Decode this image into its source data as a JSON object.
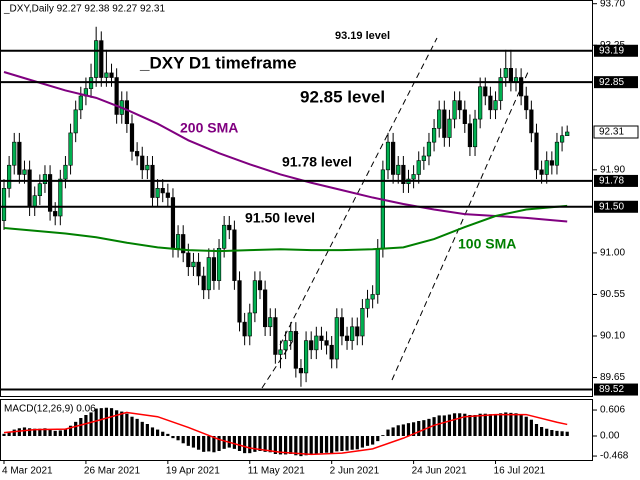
{
  "chart_data": {
    "type": "candlestick",
    "title": "_DXY,Daily  92.27 92.38 92.27 92.31",
    "annotation": "_DXY D1 timeframe",
    "categories": [
      "4 Mar 2021",
      null,
      null,
      null,
      null,
      null,
      null,
      null,
      null,
      null,
      null,
      null,
      null,
      null,
      null,
      null,
      "26 Mar 2021",
      null,
      null,
      null,
      null,
      null,
      null,
      null,
      null,
      null,
      null,
      null,
      null,
      null,
      null,
      null,
      "19 Apr 2021",
      null,
      null,
      null,
      null,
      null,
      null,
      null,
      null,
      null,
      null,
      null,
      null,
      null,
      null,
      null,
      "11 May 2021",
      null,
      null,
      null,
      null,
      null,
      null,
      null,
      null,
      null,
      null,
      null,
      null,
      null,
      null,
      null,
      "2 Jun 2021",
      null,
      null,
      null,
      null,
      null,
      null,
      null,
      null,
      null,
      null,
      null,
      null,
      null,
      null,
      null,
      "24 Jun 2021",
      null,
      null,
      null,
      null,
      null,
      null,
      null,
      null,
      null,
      null,
      null,
      null,
      null,
      null,
      null,
      "16 Jul 2021",
      null,
      null,
      null,
      null,
      null,
      null,
      null,
      null,
      null,
      null,
      null,
      null,
      null,
      null
    ],
    "open": [
      91.35,
      91.7,
      91.95,
      92.2,
      91.85,
      91.9,
      91.5,
      91.62,
      91.75,
      91.85,
      91.45,
      91.4,
      91.8,
      91.95,
      92.3,
      92.55,
      92.7,
      92.78,
      92.9,
      93.3,
      92.9,
      92.95,
      92.9,
      92.5,
      92.65,
      92.4,
      92.1,
      92.05,
      91.9,
      91.95,
      91.6,
      91.7,
      91.65,
      91.6,
      91.05,
      91.2,
      91.0,
      90.85,
      90.9,
      90.75,
      90.6,
      90.95,
      90.7,
      91.05,
      91.3,
      91.25,
      90.7,
      90.25,
      90.1,
      90.35,
      90.7,
      90.6,
      90.2,
      90.3,
      89.9,
      89.95,
      90.05,
      90.15,
      89.75,
      89.7,
      90.05,
      89.95,
      90.1,
      90.05,
      90.0,
      89.85,
      90.3,
      90.1,
      90.05,
      90.2,
      90.1,
      90.4,
      90.5,
      90.55,
      91.05,
      91.9,
      92.2,
      91.85,
      91.95,
      91.75,
      91.8,
      91.85,
      92.0,
      92.05,
      92.2,
      92.35,
      92.55,
      92.25,
      92.45,
      92.65,
      92.55,
      92.4,
      92.15,
      92.45,
      92.8,
      92.7,
      92.55,
      92.65,
      92.9,
      93.0,
      92.85,
      92.9,
      92.7,
      92.55,
      92.3,
      91.9,
      91.85,
      92.0,
      91.95,
      92.2,
      92.27
    ],
    "high": [
      91.8,
      92.05,
      92.3,
      92.3,
      92.0,
      92.0,
      91.72,
      91.85,
      91.95,
      91.95,
      91.55,
      91.9,
      92.05,
      92.4,
      92.65,
      92.8,
      92.9,
      93.05,
      93.45,
      93.4,
      93.2,
      93.05,
      93.0,
      92.75,
      92.75,
      92.5,
      92.2,
      92.15,
      92.05,
      92.05,
      91.8,
      91.8,
      91.75,
      91.7,
      91.3,
      91.3,
      91.1,
      91.0,
      91.0,
      90.85,
      91.05,
      91.05,
      91.15,
      91.4,
      91.4,
      91.35,
      90.8,
      90.35,
      90.45,
      90.8,
      90.8,
      90.7,
      90.4,
      90.4,
      90.05,
      90.15,
      90.25,
      90.25,
      89.85,
      90.15,
      90.15,
      90.2,
      90.2,
      90.15,
      90.1,
      90.4,
      90.4,
      90.2,
      90.3,
      90.3,
      90.5,
      90.6,
      90.65,
      91.15,
      92.0,
      92.3,
      92.3,
      92.05,
      92.05,
      91.9,
      91.95,
      92.1,
      92.15,
      92.3,
      92.45,
      92.65,
      92.65,
      92.55,
      92.75,
      92.75,
      92.65,
      92.5,
      92.55,
      92.9,
      92.9,
      92.8,
      92.75,
      93.0,
      93.2,
      93.2,
      93.0,
      93.0,
      92.8,
      92.65,
      92.4,
      92.0,
      92.1,
      92.1,
      92.3,
      92.37,
      92.38
    ],
    "low": [
      91.25,
      91.6,
      91.85,
      91.75,
      91.75,
      91.4,
      91.4,
      91.52,
      91.65,
      91.35,
      91.3,
      91.3,
      91.7,
      91.85,
      92.2,
      92.45,
      92.6,
      92.68,
      92.8,
      92.8,
      92.8,
      92.8,
      92.4,
      92.4,
      92.3,
      92.0,
      91.95,
      91.8,
      91.8,
      91.5,
      91.5,
      91.55,
      91.5,
      90.95,
      90.95,
      90.9,
      90.75,
      90.75,
      90.65,
      90.5,
      90.5,
      90.6,
      90.6,
      90.95,
      91.15,
      90.6,
      90.15,
      90.0,
      90.0,
      90.25,
      90.5,
      90.1,
      90.1,
      89.8,
      89.75,
      89.85,
      89.95,
      89.65,
      89.55,
      89.6,
      89.85,
      89.85,
      89.95,
      89.9,
      89.75,
      89.75,
      90.0,
      89.95,
      89.95,
      90.0,
      90.0,
      90.3,
      90.4,
      90.45,
      90.95,
      91.8,
      91.75,
      91.75,
      91.65,
      91.65,
      91.7,
      91.75,
      91.9,
      91.95,
      92.1,
      92.25,
      92.15,
      92.15,
      92.35,
      92.45,
      92.3,
      92.05,
      92.05,
      92.35,
      92.6,
      92.45,
      92.45,
      92.55,
      92.8,
      92.75,
      92.75,
      92.6,
      92.45,
      92.2,
      91.8,
      91.75,
      91.75,
      91.85,
      91.85,
      92.1,
      92.27
    ],
    "close": [
      91.7,
      91.95,
      92.2,
      91.85,
      91.9,
      91.5,
      91.62,
      91.75,
      91.85,
      91.45,
      91.4,
      91.8,
      91.95,
      92.3,
      92.55,
      92.7,
      92.78,
      92.9,
      93.3,
      92.9,
      92.95,
      92.9,
      92.5,
      92.65,
      92.4,
      92.1,
      92.05,
      91.9,
      91.95,
      91.6,
      91.7,
      91.65,
      91.6,
      91.05,
      91.2,
      91.0,
      90.85,
      90.9,
      90.75,
      90.6,
      90.95,
      90.7,
      91.05,
      91.3,
      91.25,
      90.7,
      90.25,
      90.1,
      90.35,
      90.7,
      90.6,
      90.2,
      90.3,
      89.9,
      89.95,
      90.05,
      90.15,
      89.75,
      89.7,
      90.05,
      89.95,
      90.1,
      90.05,
      90.0,
      89.85,
      90.3,
      90.1,
      90.05,
      90.2,
      90.1,
      90.4,
      90.5,
      90.55,
      91.05,
      91.9,
      92.2,
      91.85,
      91.95,
      91.75,
      91.8,
      91.85,
      92.0,
      92.05,
      92.2,
      92.35,
      92.55,
      92.25,
      92.45,
      92.65,
      92.55,
      92.4,
      92.15,
      92.45,
      92.8,
      92.7,
      92.55,
      92.65,
      92.9,
      93.0,
      92.85,
      92.9,
      92.7,
      92.55,
      92.3,
      91.9,
      91.85,
      92.0,
      91.95,
      92.2,
      92.27,
      92.31
    ],
    "up_color": "#00b050",
    "down_color": "#000000",
    "ylim": [
      89.45,
      93.74
    ],
    "yticks": [
      {
        "value": 93.7,
        "label": "93.70"
      },
      {
        "value": 93.25,
        "label": "93.25"
      },
      {
        "value": 91.9,
        "label": "91.90"
      },
      {
        "value": 91,
        "label": "91.00"
      },
      {
        "value": 90.55,
        "label": "90.55"
      },
      {
        "value": 90.1,
        "label": "90.10"
      },
      {
        "value": 89.65,
        "label": "89.65"
      }
    ],
    "current_price": 92.31,
    "levels": [
      {
        "value": 93.19,
        "label": "93.19",
        "text": "93.19 level"
      },
      {
        "value": 92.85,
        "label": "92.85",
        "text": "92.85 level"
      },
      {
        "value": 91.78,
        "label": "91.78",
        "text": "91.78 level"
      },
      {
        "value": 91.5,
        "label": "91.50",
        "text": "91.50 level"
      },
      {
        "value": 89.52,
        "label": "89.52"
      }
    ],
    "series": [
      {
        "name": "200 SMA",
        "color": "#800080",
        "x": [
          0,
          6,
          12,
          18,
          24,
          30,
          36,
          42,
          48,
          54,
          60,
          66,
          72,
          78,
          84,
          90,
          96,
          102,
          108,
          110
        ],
        "values": [
          92.96,
          92.86,
          92.76,
          92.68,
          92.55,
          92.4,
          92.22,
          92.08,
          91.96,
          91.85,
          91.76,
          91.68,
          91.6,
          91.53,
          91.47,
          91.42,
          91.4,
          91.38,
          91.35,
          91.34
        ]
      },
      {
        "name": "100 SMA",
        "color": "#008000",
        "x": [
          0,
          6,
          12,
          18,
          24,
          30,
          36,
          42,
          48,
          54,
          60,
          66,
          72,
          78,
          84,
          90,
          96,
          102,
          108,
          110
        ],
        "values": [
          91.27,
          91.24,
          91.21,
          91.17,
          91.11,
          91.06,
          91.03,
          91.02,
          91.03,
          91.04,
          91.03,
          91.03,
          91.04,
          91.06,
          91.15,
          91.28,
          91.4,
          91.47,
          91.5,
          91.51
        ]
      }
    ],
    "macd": {
      "type": "bar",
      "label": "MACD(12,26,9) 0.06",
      "color": "#000000",
      "values": [
        0.05,
        0.1,
        0.15,
        0.18,
        0.2,
        0.18,
        0.17,
        0.17,
        0.18,
        0.15,
        0.12,
        0.13,
        0.17,
        0.24,
        0.33,
        0.42,
        0.49,
        0.55,
        0.64,
        0.65,
        0.66,
        0.65,
        0.6,
        0.57,
        0.52,
        0.45,
        0.4,
        0.33,
        0.28,
        0.2,
        0.15,
        0.1,
        0.05,
        -0.05,
        -0.1,
        -0.17,
        -0.23,
        -0.27,
        -0.32,
        -0.37,
        -0.36,
        -0.38,
        -0.35,
        -0.3,
        -0.27,
        -0.3,
        -0.35,
        -0.4,
        -0.4,
        -0.37,
        -0.35,
        -0.37,
        -0.38,
        -0.42,
        -0.43,
        -0.43,
        -0.42,
        -0.45,
        -0.47,
        -0.45,
        -0.44,
        -0.42,
        -0.4,
        -0.39,
        -0.4,
        -0.36,
        -0.35,
        -0.34,
        -0.32,
        -0.31,
        -0.27,
        -0.23,
        -0.2,
        -0.12,
        0.02,
        0.15,
        0.2,
        0.25,
        0.27,
        0.3,
        0.32,
        0.35,
        0.37,
        0.4,
        0.44,
        0.48,
        0.48,
        0.5,
        0.53,
        0.53,
        0.52,
        0.49,
        0.49,
        0.52,
        0.52,
        0.51,
        0.51,
        0.53,
        0.55,
        0.54,
        0.53,
        0.5,
        0.45,
        0.38,
        0.28,
        0.21,
        0.17,
        0.14,
        0.12,
        0.11,
        0.1
      ],
      "signal": {
        "color": "#ff0000",
        "x": [
          0,
          6,
          12,
          18,
          24,
          30,
          36,
          42,
          48,
          54,
          60,
          66,
          72,
          78,
          84,
          90,
          96,
          102,
          108,
          110
        ],
        "values": [
          0.08,
          0.15,
          0.16,
          0.35,
          0.55,
          0.45,
          0.2,
          -0.08,
          -0.28,
          -0.38,
          -0.43,
          -0.4,
          -0.3,
          -0.05,
          0.25,
          0.45,
          0.5,
          0.5,
          0.32,
          0.27
        ]
      },
      "ylim": [
        -0.56,
        0.84
      ],
      "yticks": [
        0.606,
        {
          "value": 0,
          "label": "0.00"
        },
        -0.468
      ]
    }
  }
}
